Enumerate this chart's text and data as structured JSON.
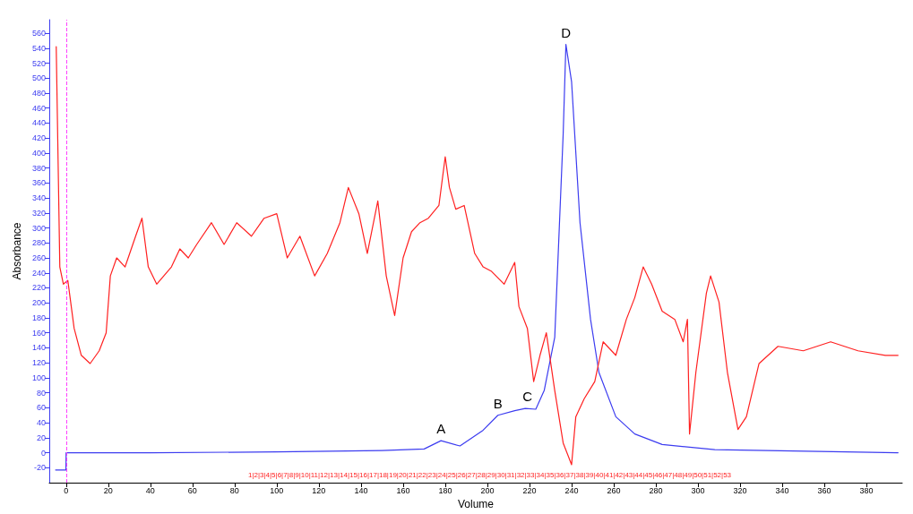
{
  "chart_data": {
    "type": "line",
    "xlabel": "Volume",
    "ylabel": "Absorbance",
    "xlim": [
      -8,
      397
    ],
    "xticks": [
      0,
      20,
      40,
      60,
      80,
      100,
      120,
      140,
      160,
      180,
      200,
      220,
      240,
      260,
      280,
      300,
      320,
      340,
      360,
      380
    ],
    "ylim": [
      -40,
      578
    ],
    "yticks": [
      -20,
      0,
      20,
      40,
      60,
      80,
      100,
      120,
      140,
      160,
      180,
      200,
      220,
      240,
      260,
      280,
      300,
      320,
      340,
      360,
      380,
      400,
      420,
      440,
      460,
      480,
      500,
      520,
      540,
      560
    ],
    "grid": false,
    "marker": "none",
    "line_style": "solid",
    "series": [
      {
        "color": "#3c3cf0",
        "x": [
          -5,
          -0.1,
          0,
          40,
          100,
          150,
          170,
          178,
          187,
          198,
          205,
          213,
          218,
          223,
          227,
          232,
          236,
          237.3,
          240,
          244,
          249,
          253,
          261,
          270,
          283,
          308,
          395
        ],
        "values": [
          -23,
          -23,
          0,
          0,
          1,
          3,
          5,
          16,
          9,
          30,
          50,
          56,
          59,
          58,
          83,
          154,
          425,
          545,
          495,
          307,
          178,
          107,
          48,
          25,
          11,
          4,
          0
        ]
      },
      {
        "color": "#ff2020",
        "x": [
          -4.7,
          -3,
          -1.3,
          0.8,
          3.8,
          7.2,
          11.4,
          15.7,
          19,
          21,
          24,
          28,
          33,
          36,
          39,
          43,
          50,
          54,
          58,
          62,
          69,
          75,
          81,
          88,
          94,
          100,
          105,
          111,
          118,
          124,
          130,
          134,
          139,
          143,
          148,
          152,
          156,
          160,
          164,
          168,
          172,
          177,
          180,
          182,
          185,
          189,
          194,
          198,
          202,
          208,
          213,
          215,
          219,
          222,
          225,
          228,
          232,
          236,
          240,
          242,
          246,
          251,
          255,
          261,
          266,
          270,
          274,
          278,
          283,
          289,
          293,
          295,
          296,
          299,
          304,
          306,
          310,
          314,
          319,
          323,
          329,
          338,
          350,
          363,
          376,
          389,
          395
        ],
        "values": [
          542,
          248,
          225,
          230,
          166,
          130,
          119,
          136,
          160,
          236,
          260,
          248,
          289,
          313,
          248,
          225,
          248,
          272,
          260,
          278,
          307,
          278,
          307,
          289,
          313,
          319,
          260,
          289,
          236,
          266,
          307,
          354,
          319,
          266,
          336,
          236,
          183,
          260,
          295,
          307,
          313,
          330,
          395,
          354,
          325,
          330,
          266,
          248,
          242,
          225,
          254,
          195,
          166,
          95,
          130,
          160,
          83,
          13,
          -16,
          48,
          72,
          95,
          148,
          130,
          178,
          207,
          248,
          225,
          189,
          178,
          148,
          178,
          25,
          107,
          213,
          236,
          201,
          107,
          31,
          48,
          119,
          142,
          136,
          148,
          136,
          130,
          130
        ]
      }
    ],
    "ref_lines": [
      {
        "axis": "x",
        "value": 0,
        "color": "#ff40ff",
        "line_style": "dashed"
      }
    ],
    "annotations": [
      {
        "text": "A",
        "x": 178,
        "y": 16
      },
      {
        "text": "B",
        "x": 205,
        "y": 50
      },
      {
        "text": "C",
        "x": 219,
        "y": 59
      },
      {
        "text": "D",
        "x": 237.3,
        "y": 545
      },
      "1|2|3|4|5|6|7|8|9|10|11|12|13|14|15|16|17|18|19|20|21|22|23|24|25|26|27|28|29|30|31|32|33|34|35|36|37|38|39|40|41|42|43|44|45|46|47|48|49|50|51|52|53"
    ]
  }
}
